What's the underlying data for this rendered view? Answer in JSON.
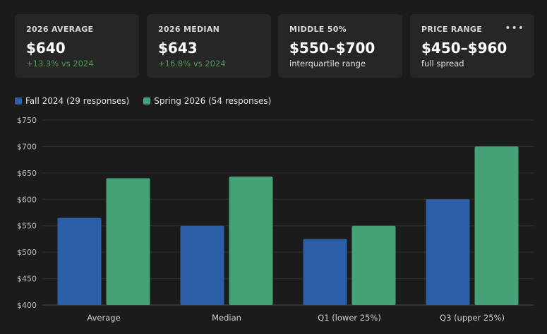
{
  "cards": [
    {
      "label": "2026 AVERAGE",
      "value": "$640",
      "sub": "+13.3% vs 2024",
      "sub_tone": "pos"
    },
    {
      "label": "2026 MEDIAN",
      "value": "$643",
      "sub": "+16.8% vs 2024",
      "sub_tone": "pos"
    },
    {
      "label": "MIDDLE 50%",
      "value": "$550–$700",
      "sub": "interquartile range",
      "sub_tone": "neutral"
    },
    {
      "label": "PRICE RANGE",
      "value": "$450–$960",
      "sub": "full spread",
      "sub_tone": "neutral"
    }
  ],
  "more_icon": "more-horizontal-icon",
  "colors": {
    "fall": "#2c5ea8",
    "spring": "#45a176",
    "positive": "#4e9a54"
  },
  "chart_data": {
    "type": "bar",
    "categories": [
      "Average",
      "Median",
      "Q1 (lower 25%)",
      "Q3 (upper 25%)"
    ],
    "series": [
      {
        "name": "Fall 2024 (29 responses)",
        "values": [
          565,
          550,
          525,
          600
        ],
        "color": "#2c5ea8"
      },
      {
        "name": "Spring 2026 (54 responses)",
        "values": [
          640,
          643,
          550,
          700
        ],
        "color": "#45a176"
      }
    ],
    "ylim": [
      400,
      750
    ],
    "yticks": [
      400,
      450,
      500,
      550,
      600,
      650,
      700,
      750
    ],
    "ytick_labels": [
      "$400",
      "$450",
      "$500",
      "$550",
      "$600",
      "$650",
      "$700",
      "$750"
    ],
    "grid": true,
    "legend_position": "top-left",
    "title": "",
    "xlabel": "",
    "ylabel": ""
  }
}
